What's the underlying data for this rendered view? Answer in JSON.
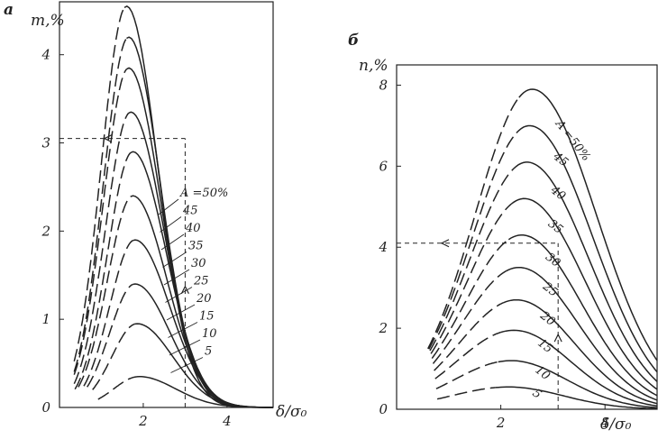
{
  "chart_data": [
    {
      "type": "line",
      "panel_label": "a",
      "ylabel": "m,%",
      "xlabel": "δ/σ₀",
      "x_ticks": [
        "2",
        "4"
      ],
      "y_ticks": [
        "0",
        "1",
        "2",
        "3",
        "4"
      ],
      "xlim": [
        0.0,
        5.1
      ],
      "ylim": [
        0,
        4.6
      ],
      "series_label_prefix": "A =",
      "series_label_unit": "%",
      "series": [
        {
          "name": "50",
          "x_peak": 1.6,
          "peak": 4.55
        },
        {
          "name": "45",
          "x_peak": 1.65,
          "peak": 4.2
        },
        {
          "name": "40",
          "x_peak": 1.65,
          "peak": 3.85
        },
        {
          "name": "35",
          "x_peak": 1.7,
          "peak": 3.35
        },
        {
          "name": "30",
          "x_peak": 1.75,
          "peak": 2.9
        },
        {
          "name": "25",
          "x_peak": 1.75,
          "peak": 2.4
        },
        {
          "name": "20",
          "x_peak": 1.8,
          "peak": 1.9
        },
        {
          "name": "15",
          "x_peak": 1.8,
          "peak": 1.4
        },
        {
          "name": "10",
          "x_peak": 1.85,
          "peak": 0.95
        },
        {
          "name": "5",
          "x_peak": 1.9,
          "peak": 0.35
        }
      ],
      "reference_x": 3.0,
      "reference_y": 3.05
    },
    {
      "type": "line",
      "panel_label": "б",
      "ylabel": "n,%",
      "xlabel": "δ/σ₀",
      "x_ticks": [
        "2",
        "4"
      ],
      "y_ticks": [
        "0",
        "2",
        "4",
        "6",
        "8"
      ],
      "xlim": [
        0.0,
        5.0
      ],
      "ylim": [
        0,
        8.5
      ],
      "series_label_prefix": "A =",
      "series_label_unit": "%",
      "series": [
        {
          "name": "50",
          "x_peak": 2.6,
          "peak": 7.9
        },
        {
          "name": "45",
          "x_peak": 2.55,
          "peak": 7.0
        },
        {
          "name": "40",
          "x_peak": 2.5,
          "peak": 6.1
        },
        {
          "name": "35",
          "x_peak": 2.45,
          "peak": 5.2
        },
        {
          "name": "30",
          "x_peak": 2.4,
          "peak": 4.3
        },
        {
          "name": "25",
          "x_peak": 2.35,
          "peak": 3.5
        },
        {
          "name": "20",
          "x_peak": 2.3,
          "peak": 2.7
        },
        {
          "name": "15",
          "x_peak": 2.25,
          "peak": 1.95
        },
        {
          "name": "10",
          "x_peak": 2.2,
          "peak": 1.2
        },
        {
          "name": "5",
          "x_peak": 2.15,
          "peak": 0.55
        }
      ],
      "reference_x": 3.1,
      "reference_y": 4.1
    }
  ]
}
